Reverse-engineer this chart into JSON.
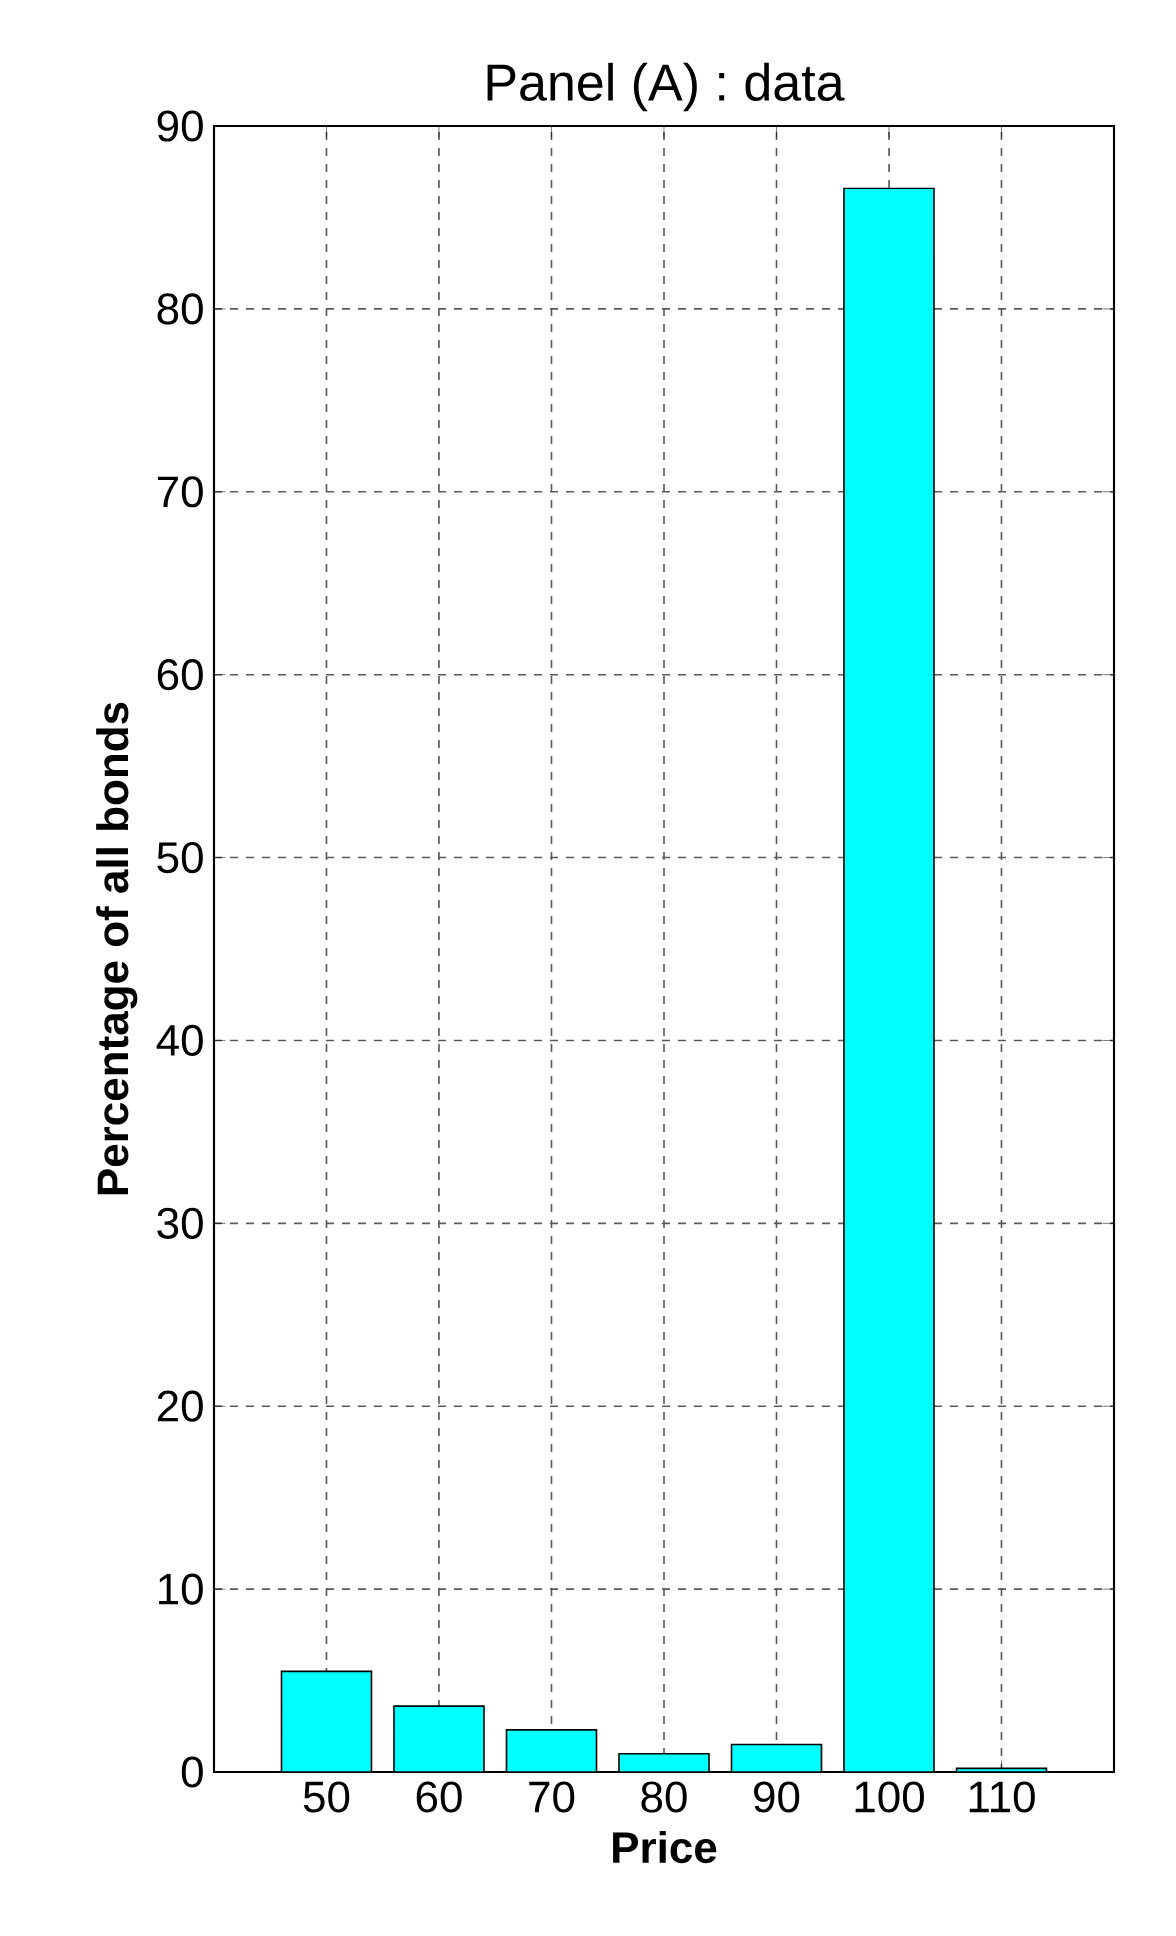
{
  "chart_data": {
    "type": "bar",
    "title": "Panel (A) : data",
    "xlabel": "Price",
    "ylabel": "Percentage of all bonds",
    "x": [
      50,
      60,
      70,
      80,
      90,
      100,
      110
    ],
    "values": [
      5.5,
      3.6,
      2.3,
      1.0,
      1.5,
      86.6,
      0.2
    ],
    "color": "#00ffff",
    "xlim": [
      40,
      120
    ],
    "xticks": [
      50,
      60,
      70,
      80,
      90,
      100,
      110
    ],
    "ylim": [
      0,
      90
    ],
    "yticks": [
      0,
      10,
      20,
      30,
      40,
      50,
      60,
      70,
      80,
      90
    ],
    "grid": true
  }
}
